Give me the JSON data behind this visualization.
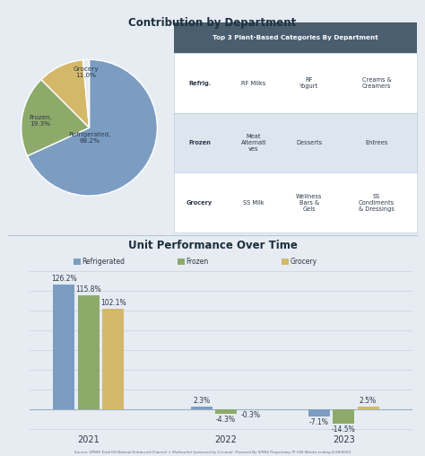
{
  "bg_color": "#e6ecf2",
  "top_title": "Contribution by Department",
  "pie_values": [
    68.2,
    19.3,
    11.0,
    1.5
  ],
  "pie_colors": [
    "#7b9dc2",
    "#8daa6b",
    "#d4b86a",
    "#e6ecf2"
  ],
  "pie_labels_text": [
    "Refrigerated,\n68.2%",
    "Frozen,\n19.3%",
    "Grocery\n11.0%",
    ""
  ],
  "table_title": "Top 3 Plant-Based Categories By Department",
  "table_header_bg": "#4a5e70",
  "table_row_bg_odd": "#ffffff",
  "table_row_bg_even": "#dde6ef",
  "table_data": [
    [
      "Refrig.",
      "RF Milks",
      "RF\nYogurt",
      "Creams &\nCreamers"
    ],
    [
      "Frozen",
      "Meat\nAlternati\nves",
      "Desserts",
      "Entrees"
    ],
    [
      "Grocery",
      "SS Milk",
      "Wellness\nBars &\nGels",
      "SS\nCondiments\n& Dressings"
    ]
  ],
  "bar_title": "Unit Performance Over Time",
  "bar_years": [
    "2021",
    "2022",
    "2023"
  ],
  "bar_categories": [
    "Refrigerated",
    "Frozen",
    "Grocery"
  ],
  "bar_colors": [
    "#7b9dc2",
    "#8daa6b",
    "#d4b86a"
  ],
  "bar_data": [
    [
      126.2,
      115.8,
      102.1
    ],
    [
      2.3,
      -4.3,
      -0.3
    ],
    [
      -7.1,
      -14.5,
      2.5
    ]
  ],
  "source_text": "Source: SPINS Total US Natural Enhanced Channel + Multioutlet (powered by Circana). Powered By SPINS Proprietary PI 156 Weeks ending 6/18/2023"
}
